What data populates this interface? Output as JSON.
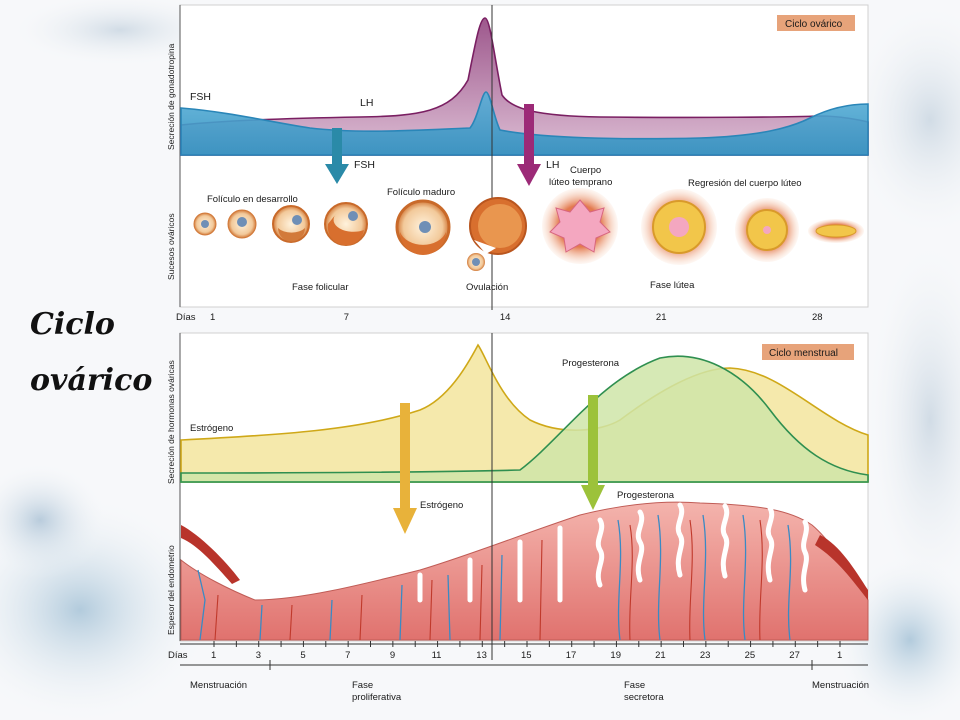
{
  "side_title": {
    "line1": "Ciclo",
    "line2": "ovárico"
  },
  "top_panel": {
    "badge": "Ciclo ovárico",
    "y_axis_upper": "Secreción de gonadotropina",
    "y_axis_lower": "Sucesos ováricos",
    "hormone_labels": {
      "fsh_top": "FSH",
      "lh_top": "LH",
      "fsh_arrow": "FSH",
      "lh_arrow": "LH"
    },
    "event_labels": {
      "developing": "Folículo en desarrollo",
      "mature": "Folículo maduro",
      "early_corpus": "Cuerpo\nlúteo temprano",
      "regression": "Regresión del cuerpo lúteo",
      "follicular_phase": "Fase folicular",
      "ovulation": "Ovulación",
      "luteal_phase": "Fase lútea"
    },
    "days_label": "Días",
    "days_ticks": [
      "1",
      "7",
      "14",
      "21",
      "28"
    ]
  },
  "bottom_panel": {
    "badge": "Ciclo menstrual",
    "y_axis_upper": "Secreción de hormonas ováricas",
    "y_axis_lower": "Espesor del endometrio",
    "hormone_labels": {
      "estrogen": "Estrógeno",
      "progesterone": "Progesterona",
      "estrogen_arrow": "Estrógeno",
      "progesterone_arrow": "Progesterona"
    },
    "days_label": "Días",
    "days_ticks": [
      "1",
      "3",
      "5",
      "7",
      "9",
      "11",
      "13",
      "15",
      "17",
      "19",
      "21",
      "23",
      "25",
      "27",
      "1"
    ],
    "phase_labels": {
      "menstruation1": "Menstruación",
      "proliferative": "Fase\nproliferativa",
      "secretory": "Fase\nsecretora",
      "menstruation2": "Menstruación"
    }
  },
  "colors": {
    "fsh": "#3a9fcf",
    "lh": "#8a2a6e",
    "estrogen": "#d6b91c",
    "progesterone": "#3a9a55",
    "badge": "#e7a37a",
    "arrow_teal": "#2a8aa8",
    "arrow_magenta": "#9c2a77",
    "arrow_orange": "#e8b23a",
    "arrow_green": "#9cc23a",
    "endometrium": "#e58a86",
    "vessel": "#3a8ac4"
  }
}
